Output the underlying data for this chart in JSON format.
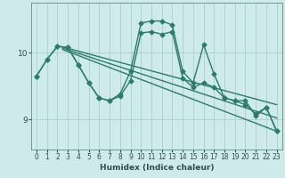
{
  "xlabel": "Humidex (Indice chaleur)",
  "ylabel": "",
  "bg_color": "#ceeaea",
  "line_color": "#2e7b6e",
  "grid_color": "#aacece",
  "xlim": [
    -0.5,
    23.5
  ],
  "ylim": [
    8.55,
    10.75
  ],
  "yticks": [
    9,
    10
  ],
  "xticks": [
    0,
    1,
    2,
    3,
    4,
    5,
    6,
    7,
    8,
    9,
    10,
    11,
    12,
    13,
    14,
    15,
    16,
    17,
    18,
    19,
    20,
    21,
    22,
    23
  ],
  "lines": [
    {
      "x": [
        0,
        1,
        2,
        3,
        4,
        5,
        6,
        7,
        8,
        9,
        10,
        11,
        12,
        13,
        14,
        15,
        16,
        17,
        18,
        19,
        20,
        21,
        22,
        23
      ],
      "y": [
        9.65,
        9.9,
        10.1,
        10.08,
        9.82,
        9.55,
        9.32,
        9.28,
        9.38,
        9.72,
        10.45,
        10.48,
        10.48,
        10.42,
        9.72,
        9.55,
        10.12,
        9.68,
        9.32,
        9.28,
        9.28,
        9.05,
        9.18,
        8.82
      ],
      "marker": "D",
      "markersize": 2.5,
      "linewidth": 1.0
    },
    {
      "x": [
        0,
        1,
        2,
        3,
        4,
        5,
        6,
        7,
        8,
        9,
        10,
        11,
        12,
        13,
        14,
        15,
        16,
        17,
        18,
        19,
        20,
        21,
        22,
        23
      ],
      "y": [
        9.65,
        9.9,
        10.1,
        10.08,
        9.82,
        9.55,
        9.32,
        9.28,
        9.35,
        9.58,
        10.3,
        10.32,
        10.28,
        10.32,
        9.62,
        9.48,
        9.55,
        9.48,
        9.32,
        9.28,
        9.22,
        9.08,
        9.18,
        8.82
      ],
      "marker": "D",
      "markersize": 2.5,
      "linewidth": 1.0
    },
    {
      "x": [
        2.5,
        23
      ],
      "y": [
        10.09,
        9.22
      ],
      "marker": null,
      "linewidth": 1.0
    },
    {
      "x": [
        2.5,
        23
      ],
      "y": [
        10.05,
        8.82
      ],
      "marker": null,
      "linewidth": 1.0
    },
    {
      "x": [
        2.5,
        23
      ],
      "y": [
        10.07,
        9.02
      ],
      "marker": null,
      "linewidth": 1.0
    }
  ]
}
